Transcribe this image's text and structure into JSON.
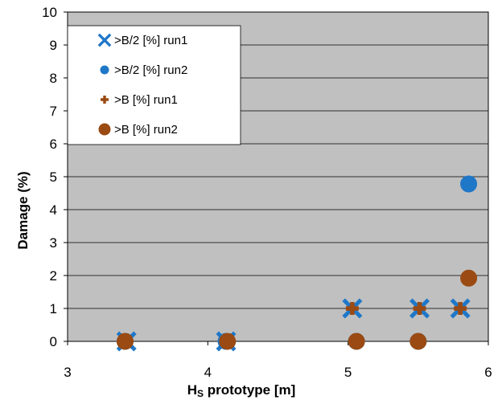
{
  "chart_data": {
    "type": "scatter",
    "xlabel_main": "H",
    "xlabel_sub": "S",
    "xlabel_rest": " prototype [m]",
    "ylabel": "Damage (%)",
    "xlim": [
      3,
      6
    ],
    "ylim": [
      0,
      10
    ],
    "x_ticks": [
      "3",
      "4",
      "5",
      "6"
    ],
    "y_ticks": [
      "0",
      "1",
      "2",
      "3",
      "4",
      "5",
      "6",
      "7",
      "8",
      "9",
      "10"
    ],
    "grid": "horizontal",
    "legend_position": "top-left",
    "plot_background": "#c0c0c0",
    "series": [
      {
        "name": ">B/2 [%] run1",
        "marker": "x",
        "color": "#1f77c8",
        "points": [
          [
            3.42,
            0
          ],
          [
            4.13,
            0
          ],
          [
            5.03,
            1
          ],
          [
            5.51,
            1
          ],
          [
            5.8,
            1
          ]
        ]
      },
      {
        "name": ">B/2 [%] run2",
        "marker": "circle",
        "color": "#1f77c8",
        "points": [
          [
            3.41,
            0
          ],
          [
            4.13,
            0
          ],
          [
            5.06,
            0
          ],
          [
            5.5,
            0
          ],
          [
            5.86,
            4.78
          ]
        ]
      },
      {
        "name": ">B [%] run1",
        "marker": "plus",
        "color": "#9a4a12",
        "points": [
          [
            3.42,
            0
          ],
          [
            4.13,
            0
          ],
          [
            5.03,
            1
          ],
          [
            5.51,
            1
          ],
          [
            5.8,
            1
          ]
        ]
      },
      {
        "name": ">B [%] run2",
        "marker": "circle",
        "color": "#9a4a12",
        "points": [
          [
            3.41,
            0
          ],
          [
            4.14,
            0
          ],
          [
            5.06,
            0
          ],
          [
            5.5,
            0
          ],
          [
            5.86,
            1.92
          ]
        ]
      }
    ]
  }
}
